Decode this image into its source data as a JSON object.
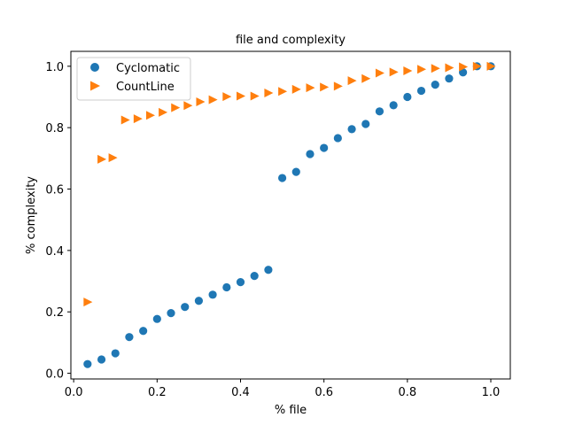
{
  "chart_data": {
    "type": "scatter",
    "title": "file and complexity",
    "xlabel": "% file",
    "ylabel": "% complexity",
    "xlim": [
      -0.0067,
      1.0467
    ],
    "ylim": [
      -0.0185,
      1.0485
    ],
    "xticks": [
      0.0,
      0.2,
      0.4,
      0.6,
      0.8,
      1.0
    ],
    "yticks": [
      0.0,
      0.2,
      0.4,
      0.6,
      0.8,
      1.0
    ],
    "xtick_labels": [
      "0.0",
      "0.2",
      "0.4",
      "0.6",
      "0.8",
      "1.0"
    ],
    "ytick_labels": [
      "0.0",
      "0.2",
      "0.4",
      "0.6",
      "0.8",
      "1.0"
    ],
    "grid": false,
    "legend_position": "top-left",
    "series": [
      {
        "name": "Cyclomatic",
        "marker": "circle",
        "color": "#1f77b4",
        "x": [
          0.0333,
          0.0667,
          0.1,
          0.1333,
          0.1667,
          0.2,
          0.2333,
          0.2667,
          0.3,
          0.3333,
          0.3667,
          0.4,
          0.4333,
          0.4667,
          0.5,
          0.5333,
          0.5667,
          0.6,
          0.6333,
          0.6667,
          0.7,
          0.7333,
          0.7667,
          0.8,
          0.8333,
          0.8667,
          0.9,
          0.9333,
          0.9667,
          1.0
        ],
        "y": [
          0.03,
          0.045,
          0.065,
          0.118,
          0.138,
          0.177,
          0.196,
          0.216,
          0.236,
          0.256,
          0.28,
          0.297,
          0.317,
          0.337,
          0.636,
          0.656,
          0.714,
          0.734,
          0.766,
          0.795,
          0.812,
          0.853,
          0.873,
          0.9,
          0.92,
          0.94,
          0.96,
          0.98,
          1.0,
          1.0
        ]
      },
      {
        "name": "CountLine",
        "marker": "triangle-right",
        "color": "#ff7f0e",
        "x": [
          0.0333,
          0.0667,
          0.0933,
          0.1233,
          0.1533,
          0.1833,
          0.2133,
          0.2433,
          0.2733,
          0.3033,
          0.3333,
          0.3667,
          0.4,
          0.4333,
          0.4667,
          0.5,
          0.5333,
          0.5667,
          0.6,
          0.6333,
          0.6667,
          0.7,
          0.7333,
          0.7667,
          0.8,
          0.8333,
          0.8667,
          0.9,
          0.9333,
          0.9667,
          1.0
        ],
        "y": [
          0.232,
          0.697,
          0.702,
          0.825,
          0.829,
          0.84,
          0.85,
          0.865,
          0.872,
          0.884,
          0.891,
          0.901,
          0.903,
          0.903,
          0.913,
          0.918,
          0.925,
          0.93,
          0.932,
          0.935,
          0.953,
          0.96,
          0.978,
          0.981,
          0.985,
          0.99,
          0.993,
          0.995,
          0.998,
          1.0,
          1.0
        ]
      }
    ]
  }
}
